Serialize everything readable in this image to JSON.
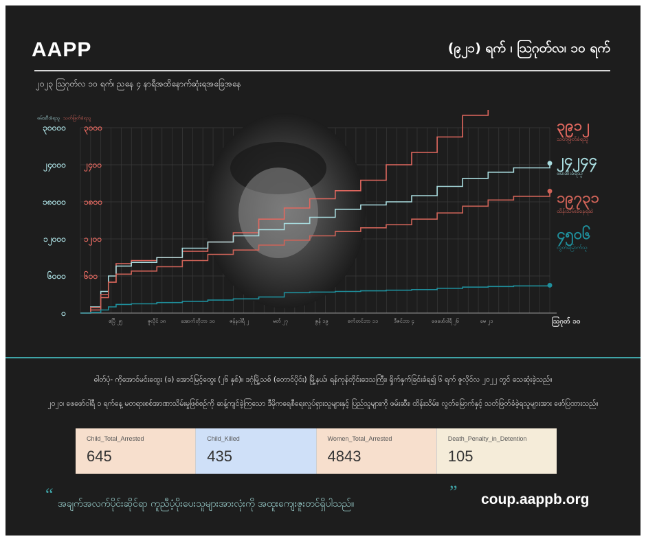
{
  "header": {
    "title": "AAPP",
    "date_headline": "(၉၂၁) ရက် ၊ ဩဂုတ်လ၊ ၁၀ ရက်",
    "subtitle": "၂၀၂၃ ဩဂုတ်လ ၁၀ ရက်၊ ညနေ ၄ နာရီအထိနောက်ဆုံးရအခြေအနေ"
  },
  "colors": {
    "background": "#1d1d1d",
    "killed": "#e2685f",
    "arrested": "#a9dcdf",
    "detained": "#cf6358",
    "fugitive": "#1f8f9c",
    "teal_rule": "#3fa4a7",
    "card_peach": "#f7dfcd",
    "card_blue": "#cfe0f8",
    "card_cream": "#f5ecd9"
  },
  "chart_data": {
    "type": "line",
    "left_axis": {
      "title": "ဖမ်းဆီးခံရသူ",
      "ticks": [
        "၀",
        "၆၀၀၀",
        "၁၂၀၀၀",
        "၁၈၀၀၀",
        "၂၄၀၀၀",
        "၃၀၀၀၀"
      ],
      "values": [
        0,
        6000,
        12000,
        18000,
        24000,
        30000
      ]
    },
    "right_axis": {
      "title": "သတ်ဖြတ်ခံရသူ",
      "ticks": [
        "၀",
        "၆၀၀",
        "၁၂၀၀",
        "၁၈၀၀",
        "၂၄၀၀",
        "၃၀၀၀"
      ],
      "values": [
        0,
        600,
        1200,
        1800,
        2400,
        3000
      ]
    },
    "x_categories": [
      "ဧပြီ ၂၅",
      "ဇူလိုင် ၁၈",
      "အောက်တိုဘာ ၁၀",
      "ဇန်နဝါရီ ၂",
      "မတ် ၂၇",
      "ဇွန် ၁၉",
      "စက်တင်ဘာ ၁၁",
      "ဒီဇင်ဘာ ၄",
      "ဖေဖော်ဝါရီ ၂၆",
      "မေ ၂၁"
    ],
    "x_end_label": "ဩဂုတ် ၁၀",
    "x_range": [
      0,
      921
    ],
    "series": [
      {
        "key": "killed",
        "name": "သတ်ဖြတ်ခံရသူ",
        "final_label": "၃၉၁၂",
        "axis": "right",
        "x": [
          0,
          20,
          40,
          55,
          70,
          100,
          150,
          200,
          250,
          300,
          350,
          400,
          450,
          500,
          550,
          600,
          650,
          700,
          750,
          800,
          850,
          921
        ],
        "values": [
          0,
          50,
          250,
          500,
          800,
          850,
          900,
          1000,
          1150,
          1300,
          1520,
          1700,
          1850,
          1980,
          2150,
          2400,
          2600,
          2850,
          3200,
          3400,
          3600,
          3912
        ]
      },
      {
        "key": "arrested",
        "name": "ဖမ်းဆီးခံရသူ",
        "final_label": "၂၄၂၄၄",
        "axis": "left",
        "x": [
          0,
          20,
          40,
          55,
          70,
          100,
          150,
          200,
          250,
          300,
          350,
          400,
          450,
          500,
          550,
          600,
          650,
          700,
          750,
          800,
          850,
          921
        ],
        "values": [
          0,
          1000,
          3500,
          6000,
          7600,
          8200,
          9000,
          10500,
          11500,
          12500,
          13500,
          14500,
          15500,
          16800,
          17500,
          18000,
          19000,
          20500,
          21800,
          22800,
          23500,
          24244
        ]
      },
      {
        "key": "detained",
        "name": "ထိန်းသိမ်းခံနေရဆဲ",
        "final_label": "၁၉၇၃၁",
        "axis": "left",
        "x": [
          0,
          20,
          40,
          55,
          70,
          100,
          150,
          200,
          250,
          300,
          350,
          400,
          450,
          500,
          550,
          600,
          650,
          700,
          750,
          800,
          850,
          921
        ],
        "values": [
          0,
          900,
          3000,
          5000,
          6300,
          6800,
          7500,
          8500,
          9500,
          10200,
          11000,
          11800,
          12500,
          13200,
          13800,
          14300,
          15200,
          16200,
          17300,
          18300,
          18900,
          19731
        ]
      },
      {
        "key": "fugitive",
        "name": "လွတ်မြောက်သူ",
        "final_label": "၄၅၀၆",
        "axis": "left",
        "x": [
          0,
          20,
          40,
          55,
          70,
          100,
          150,
          200,
          250,
          300,
          350,
          400,
          450,
          500,
          550,
          600,
          650,
          700,
          750,
          800,
          850,
          921
        ],
        "values": [
          0,
          100,
          500,
          1000,
          1400,
          1500,
          1700,
          1900,
          2100,
          2300,
          2600,
          3300,
          3400,
          3500,
          3600,
          3700,
          3800,
          4000,
          4200,
          4300,
          4400,
          4506
        ]
      }
    ],
    "grid": true
  },
  "paragraphs": {
    "p1": "ဓါတ်ပုံ- ကိုအောင်မင်းထွေး (ခ) အောင်မြင့်ထွေး (၂၆ နှစ်)။ ဒဂုံမြို့သစ် (တောင်ပိုင်း) မြို့နယ်၊ ရန်ကုန်တိုင်းဒေသကြီး၊ ရှိက်နှက်ခြင်းခံရ၍ ၆ ရက် ဇူလိုင်လ ၂၀၂၂ တွင် သေဆုံးခဲ့သည်။",
    "p2": "၂၀၂၁၊ ဖေဖော်ဝါရီ ၁ ရက်နေ့ မတရားစစ်အာဏာသိမ်းမှုဖြစ်စဉ်ကို ဆန့်ကျင်ခဲ့ကြသော ဒီမိုကရေစီရေးလှုပ်ရှားသူများနှင့် ပြည်သူများကို ဖမ်းဆီး၊ ထိန်းသိမ်း၊ လွတ်မြောက်နှင့် သတ်ဖြတ်ခံခဲ့ရသူများအား ဖော်ပြထားသည်။"
  },
  "stats": [
    {
      "label": "Child_Total_Arrested",
      "value": "645",
      "color": "#f7dfcd"
    },
    {
      "label": "Child_Killed",
      "value": "435",
      "color": "#cfe0f8"
    },
    {
      "label": "Women_Total_Arrested",
      "value": "4843",
      "color": "#f7dfcd"
    },
    {
      "label": "Death_Penalty_in_Detention",
      "value": "105",
      "color": "#f5ecd9"
    }
  ],
  "footer": {
    "quote_open": "“",
    "quote": "အချက်အလက်ပိုင်းဆိုင်ရာ ကူညီပံ့ပိုးပေးသူများအားလုံးကို အထူးကျေးဇူးတင်ရှိပါသည်။",
    "quote_close": "”",
    "website": "coup.aappb.org"
  }
}
